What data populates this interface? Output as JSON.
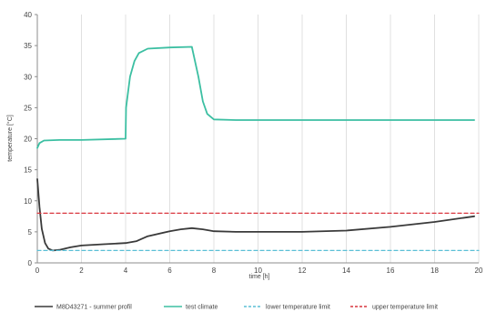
{
  "chart_data": {
    "type": "line",
    "xlabel": "time [h]",
    "ylabel": "temperature [°C]",
    "xlim": [
      0,
      20
    ],
    "ylim": [
      0,
      40
    ],
    "x_ticks": [
      0,
      2,
      4,
      6,
      8,
      10,
      12,
      14,
      16,
      18,
      20
    ],
    "y_ticks": [
      0,
      5,
      10,
      15,
      20,
      25,
      30,
      35,
      40
    ],
    "grid": "vertical",
    "legend_position": "bottom",
    "series": [
      {
        "name": "M8D43271 - summer profil",
        "color": "#3a3a3a",
        "dash": "solid",
        "points": [
          [
            0,
            13.5
          ],
          [
            0.1,
            9
          ],
          [
            0.2,
            5.5
          ],
          [
            0.35,
            3.2
          ],
          [
            0.5,
            2.3
          ],
          [
            0.7,
            2.0
          ],
          [
            1.0,
            2.1
          ],
          [
            1.5,
            2.5
          ],
          [
            2,
            2.8
          ],
          [
            3,
            3.0
          ],
          [
            4,
            3.2
          ],
          [
            4.5,
            3.5
          ],
          [
            5,
            4.3
          ],
          [
            6,
            5.1
          ],
          [
            6.5,
            5.4
          ],
          [
            7,
            5.6
          ],
          [
            7.5,
            5.4
          ],
          [
            8,
            5.1
          ],
          [
            9,
            5.0
          ],
          [
            10,
            5.0
          ],
          [
            12,
            5.0
          ],
          [
            14,
            5.2
          ],
          [
            16,
            5.8
          ],
          [
            18,
            6.6
          ],
          [
            19.8,
            7.5
          ]
        ]
      },
      {
        "name": "test climate",
        "color": "#3cbfa2",
        "dash": "solid",
        "points": [
          [
            0,
            18.5
          ],
          [
            0.1,
            19.3
          ],
          [
            0.3,
            19.7
          ],
          [
            1,
            19.8
          ],
          [
            2,
            19.8
          ],
          [
            4,
            20.0
          ],
          [
            4.02,
            25
          ],
          [
            4.2,
            30
          ],
          [
            4.4,
            32.5
          ],
          [
            4.6,
            33.8
          ],
          [
            5,
            34.5
          ],
          [
            6,
            34.7
          ],
          [
            7,
            34.8
          ],
          [
            7.3,
            30
          ],
          [
            7.5,
            26
          ],
          [
            7.7,
            24
          ],
          [
            8,
            23.1
          ],
          [
            9,
            23.0
          ],
          [
            12,
            23.0
          ],
          [
            16,
            23.0
          ],
          [
            19.8,
            23.0
          ]
        ]
      },
      {
        "name": "lower temperature limit",
        "color": "#5bbfd6",
        "dash": "4,3",
        "points": [
          [
            0,
            2
          ],
          [
            20,
            2
          ]
        ]
      },
      {
        "name": "upper temperature limit",
        "color": "#d9363e",
        "dash": "4,3",
        "points": [
          [
            0,
            8
          ],
          [
            20,
            8
          ]
        ]
      }
    ]
  }
}
